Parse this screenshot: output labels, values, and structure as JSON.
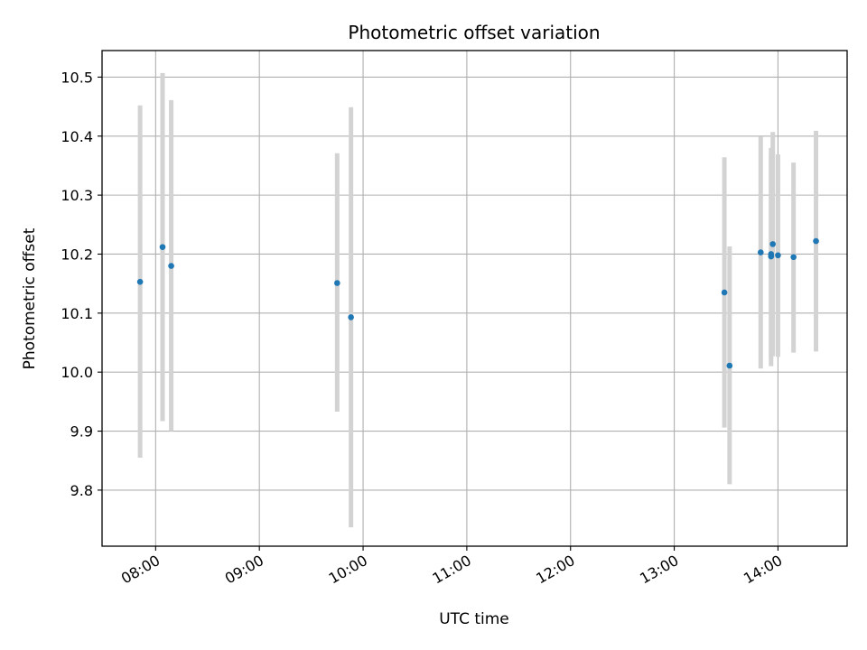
{
  "chart_data": {
    "type": "scatter",
    "title": "Photometric offset variation",
    "xlabel": "UTC time",
    "ylabel": "Photometric offset",
    "x_ticks": [
      "08:00",
      "09:00",
      "10:00",
      "11:00",
      "12:00",
      "13:00",
      "14:00"
    ],
    "y_ticks": [
      "9.8",
      "9.9",
      "10.0",
      "10.1",
      "10.2",
      "10.3",
      "10.4",
      "10.5"
    ],
    "xlim": [
      "07:29",
      "14:40"
    ],
    "ylim": [
      9.705,
      10.545
    ],
    "grid": true,
    "colors": {
      "points": "#1f77b4",
      "errorbars": "#d3d3d3",
      "grid": "#b0b0b0"
    },
    "series": [
      {
        "points": [
          {
            "x": "07:51",
            "y": 10.153,
            "ylow": 9.855,
            "yhigh": 10.452
          },
          {
            "x": "08:04",
            "y": 10.212,
            "ylow": 9.917,
            "yhigh": 10.507
          },
          {
            "x": "08:09",
            "y": 10.18,
            "ylow": 9.9,
            "yhigh": 10.461
          },
          {
            "x": "09:45",
            "y": 10.151,
            "ylow": 9.933,
            "yhigh": 10.371
          },
          {
            "x": "09:53",
            "y": 10.093,
            "ylow": 9.737,
            "yhigh": 10.449
          },
          {
            "x": "13:29",
            "y": 10.135,
            "ylow": 9.906,
            "yhigh": 10.364
          },
          {
            "x": "13:32",
            "y": 10.011,
            "ylow": 9.81,
            "yhigh": 10.213
          },
          {
            "x": "13:50",
            "y": 10.203,
            "ylow": 10.006,
            "yhigh": 10.399
          },
          {
            "x": "13:56",
            "y": 10.2,
            "ylow": 10.01,
            "yhigh": 10.38
          },
          {
            "x": "13:56",
            "y": 10.196,
            "ylow": 10.023,
            "yhigh": 10.37
          },
          {
            "x": "13:57",
            "y": 10.217,
            "ylow": 10.027,
            "yhigh": 10.407
          },
          {
            "x": "14:00",
            "y": 10.198,
            "ylow": 10.026,
            "yhigh": 10.369
          },
          {
            "x": "14:09",
            "y": 10.195,
            "ylow": 10.033,
            "yhigh": 10.355
          },
          {
            "x": "14:22",
            "y": 10.222,
            "ylow": 10.035,
            "yhigh": 10.409
          }
        ]
      }
    ]
  }
}
